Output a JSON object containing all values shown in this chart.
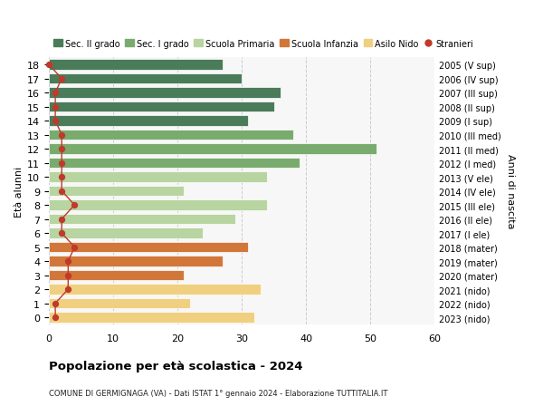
{
  "ages": [
    18,
    17,
    16,
    15,
    14,
    13,
    12,
    11,
    10,
    9,
    8,
    7,
    6,
    5,
    4,
    3,
    2,
    1,
    0
  ],
  "anni_nascita": [
    "2005 (V sup)",
    "2006 (IV sup)",
    "2007 (III sup)",
    "2008 (II sup)",
    "2009 (I sup)",
    "2010 (III med)",
    "2011 (II med)",
    "2012 (I med)",
    "2013 (V ele)",
    "2014 (IV ele)",
    "2015 (III ele)",
    "2016 (II ele)",
    "2017 (I ele)",
    "2018 (mater)",
    "2019 (mater)",
    "2020 (mater)",
    "2021 (nido)",
    "2022 (nido)",
    "2023 (nido)"
  ],
  "bar_values": [
    27,
    30,
    36,
    35,
    31,
    38,
    51,
    39,
    34,
    21,
    34,
    29,
    24,
    31,
    27,
    21,
    33,
    22,
    32
  ],
  "bar_colors": [
    "#4a7c59",
    "#4a7c59",
    "#4a7c59",
    "#4a7c59",
    "#4a7c59",
    "#7aab6e",
    "#7aab6e",
    "#7aab6e",
    "#b8d4a0",
    "#b8d4a0",
    "#b8d4a0",
    "#b8d4a0",
    "#b8d4a0",
    "#d2773a",
    "#d2773a",
    "#d2773a",
    "#f0d080",
    "#f0d080",
    "#f0d080"
  ],
  "stranieri_values": [
    0,
    2,
    1,
    1,
    1,
    2,
    2,
    2,
    2,
    2,
    4,
    2,
    2,
    4,
    3,
    3,
    3,
    1,
    1
  ],
  "legend_labels": [
    "Sec. II grado",
    "Sec. I grado",
    "Scuola Primaria",
    "Scuola Infanzia",
    "Asilo Nido",
    "Stranieri"
  ],
  "legend_colors": [
    "#4a7c59",
    "#7aab6e",
    "#b8d4a0",
    "#d2773a",
    "#f0d080",
    "#c0392b"
  ],
  "title": "Popolazione per età scolastica - 2024",
  "subtitle": "COMUNE DI GERMIGNAGA (VA) - Dati ISTAT 1° gennaio 2024 - Elaborazione TUTTITALIA.IT",
  "ylabel_left": "Età alunni",
  "ylabel_right": "Anni di nascita",
  "xlim": [
    0,
    60
  ],
  "xticks": [
    0,
    10,
    20,
    30,
    40,
    50,
    60
  ],
  "stranieri_color": "#c0392b",
  "bar_background": "#f7f7f7",
  "grid_color": "#cccccc"
}
